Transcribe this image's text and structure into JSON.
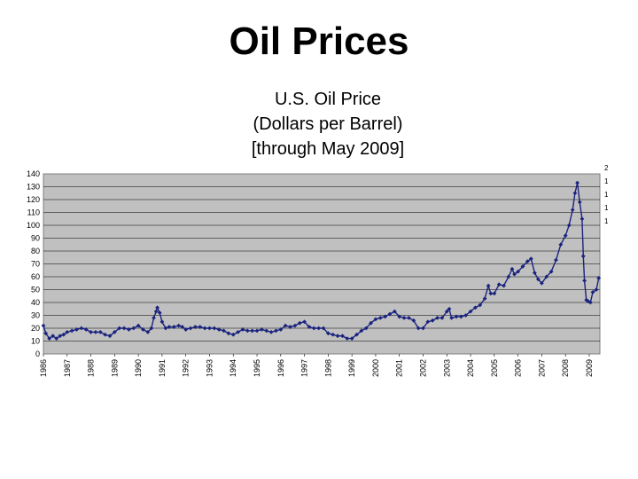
{
  "slide_title": "Oil Prices",
  "chart_data": {
    "type": "line",
    "title_lines": [
      "U.S. Oil Price",
      "(Dollars per Barrel)",
      "[through May 2009]"
    ],
    "xlabel": "",
    "ylabel": "",
    "ylim": [
      0,
      140
    ],
    "y_ticks": [
      0,
      10,
      20,
      30,
      40,
      50,
      60,
      70,
      80,
      90,
      100,
      110,
      120,
      130,
      140
    ],
    "x_tick_labels": [
      "1986",
      "1987",
      "1988",
      "1989",
      "1990",
      "1991",
      "1992",
      "1993",
      "1994",
      "1995",
      "1996",
      "1997",
      "1998",
      "1999",
      "2000",
      "2001",
      "2002",
      "2003",
      "2004",
      "2005",
      "2006",
      "2007",
      "2008",
      "2009"
    ],
    "grid": true,
    "legend": "none",
    "plot_background": "#c0c0c0",
    "series": [
      {
        "color": "#1a237e",
        "marker": "diamond",
        "points": [
          [
            1986.0,
            22
          ],
          [
            1986.1,
            16
          ],
          [
            1986.25,
            12
          ],
          [
            1986.4,
            14
          ],
          [
            1986.55,
            12
          ],
          [
            1986.7,
            14
          ],
          [
            1986.85,
            15
          ],
          [
            1987.0,
            17
          ],
          [
            1987.2,
            18
          ],
          [
            1987.4,
            19
          ],
          [
            1987.6,
            20
          ],
          [
            1987.8,
            19
          ],
          [
            1988.0,
            17
          ],
          [
            1988.2,
            17
          ],
          [
            1988.4,
            17
          ],
          [
            1988.6,
            15
          ],
          [
            1988.8,
            14
          ],
          [
            1989.0,
            17
          ],
          [
            1989.2,
            20
          ],
          [
            1989.4,
            20
          ],
          [
            1989.6,
            19
          ],
          [
            1989.8,
            20
          ],
          [
            1990.0,
            22
          ],
          [
            1990.2,
            19
          ],
          [
            1990.4,
            17
          ],
          [
            1990.55,
            20
          ],
          [
            1990.65,
            28
          ],
          [
            1990.75,
            33
          ],
          [
            1990.8,
            36
          ],
          [
            1990.9,
            32
          ],
          [
            1991.0,
            25
          ],
          [
            1991.15,
            20
          ],
          [
            1991.3,
            21
          ],
          [
            1991.5,
            21
          ],
          [
            1991.7,
            22
          ],
          [
            1991.85,
            21
          ],
          [
            1992.0,
            19
          ],
          [
            1992.2,
            20
          ],
          [
            1992.4,
            21
          ],
          [
            1992.6,
            21
          ],
          [
            1992.8,
            20
          ],
          [
            1993.0,
            20
          ],
          [
            1993.2,
            20
          ],
          [
            1993.4,
            19
          ],
          [
            1993.6,
            18
          ],
          [
            1993.8,
            16
          ],
          [
            1994.0,
            15
          ],
          [
            1994.2,
            17
          ],
          [
            1994.4,
            19
          ],
          [
            1994.6,
            18
          ],
          [
            1994.8,
            18
          ],
          [
            1995.0,
            18
          ],
          [
            1995.2,
            19
          ],
          [
            1995.4,
            18
          ],
          [
            1995.6,
            17
          ],
          [
            1995.8,
            18
          ],
          [
            1996.0,
            19
          ],
          [
            1996.2,
            22
          ],
          [
            1996.4,
            21
          ],
          [
            1996.6,
            22
          ],
          [
            1996.8,
            24
          ],
          [
            1997.0,
            25
          ],
          [
            1997.2,
            21
          ],
          [
            1997.4,
            20
          ],
          [
            1997.6,
            20
          ],
          [
            1997.8,
            20
          ],
          [
            1998.0,
            16
          ],
          [
            1998.2,
            15
          ],
          [
            1998.4,
            14
          ],
          [
            1998.6,
            14
          ],
          [
            1998.8,
            12
          ],
          [
            1999.0,
            12
          ],
          [
            1999.2,
            15
          ],
          [
            1999.4,
            18
          ],
          [
            1999.6,
            20
          ],
          [
            1999.8,
            24
          ],
          [
            2000.0,
            27
          ],
          [
            2000.2,
            28
          ],
          [
            2000.4,
            29
          ],
          [
            2000.6,
            31
          ],
          [
            2000.8,
            33
          ],
          [
            2001.0,
            29
          ],
          [
            2001.2,
            28
          ],
          [
            2001.4,
            28
          ],
          [
            2001.6,
            26
          ],
          [
            2001.8,
            20
          ],
          [
            2002.0,
            20
          ],
          [
            2002.2,
            25
          ],
          [
            2002.4,
            26
          ],
          [
            2002.6,
            28
          ],
          [
            2002.8,
            28
          ],
          [
            2003.0,
            33
          ],
          [
            2003.1,
            35
          ],
          [
            2003.2,
            28
          ],
          [
            2003.4,
            29
          ],
          [
            2003.6,
            29
          ],
          [
            2003.8,
            30
          ],
          [
            2004.0,
            33
          ],
          [
            2004.2,
            36
          ],
          [
            2004.4,
            38
          ],
          [
            2004.6,
            43
          ],
          [
            2004.75,
            53
          ],
          [
            2004.85,
            47
          ],
          [
            2005.0,
            47
          ],
          [
            2005.2,
            54
          ],
          [
            2005.4,
            53
          ],
          [
            2005.6,
            60
          ],
          [
            2005.75,
            66
          ],
          [
            2005.85,
            62
          ],
          [
            2006.0,
            64
          ],
          [
            2006.2,
            68
          ],
          [
            2006.4,
            72
          ],
          [
            2006.55,
            74
          ],
          [
            2006.7,
            63
          ],
          [
            2006.85,
            58
          ],
          [
            2007.0,
            55
          ],
          [
            2007.2,
            60
          ],
          [
            2007.4,
            64
          ],
          [
            2007.6,
            73
          ],
          [
            2007.8,
            85
          ],
          [
            2008.0,
            92
          ],
          [
            2008.15,
            100
          ],
          [
            2008.3,
            112
          ],
          [
            2008.4,
            125
          ],
          [
            2008.5,
            133
          ],
          [
            2008.6,
            118
          ],
          [
            2008.7,
            105
          ],
          [
            2008.75,
            76
          ],
          [
            2008.8,
            57
          ],
          [
            2008.88,
            42
          ],
          [
            2008.95,
            41
          ],
          [
            2009.05,
            40
          ],
          [
            2009.15,
            48
          ],
          [
            2009.3,
            50
          ],
          [
            2009.4,
            59
          ]
        ]
      }
    ],
    "stray_labels": [
      "2",
      "1",
      "1",
      "1",
      "1"
    ]
  }
}
